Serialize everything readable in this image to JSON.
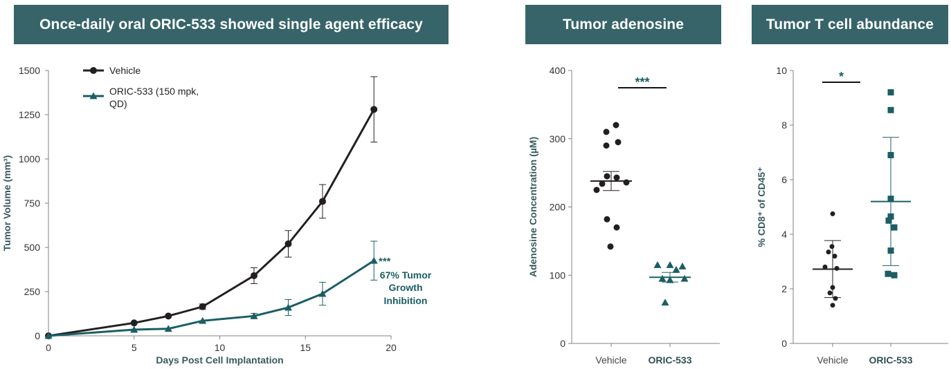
{
  "panels": {
    "growth_title": "Once-daily oral ORIC-533 showed single agent efficacy",
    "adenosine_title": "Tumor adenosine",
    "tcell_title": "Tumor T cell abundance"
  },
  "colors": {
    "banner": "#376468",
    "vehicle": "#231f20",
    "oric": "#1b5e63",
    "axis": "#808080"
  },
  "chart_data": [
    {
      "type": "line",
      "title": "Once-daily oral ORIC-533 showed single agent efficacy",
      "xlabel": "Days Post Cell Implantation",
      "ylabel": "Tumor Volume (mm³)",
      "xlim": [
        0,
        20
      ],
      "ylim": [
        0,
        1500
      ],
      "xticks": [
        "0",
        "5",
        "10",
        "15",
        "20"
      ],
      "yticks": [
        "0",
        "250",
        "500",
        "750",
        "1000",
        "1250",
        "1500"
      ],
      "series": [
        {
          "name": "Vehicle",
          "x": [
            0,
            5,
            7,
            9,
            12,
            14,
            16,
            19
          ],
          "y": [
            0,
            73,
            112,
            165,
            340,
            520,
            760,
            1280
          ],
          "err": [
            0,
            0,
            0,
            15,
            45,
            75,
            95,
            185
          ]
        },
        {
          "name": "ORIC-533 (150 mpk, QD)",
          "x": [
            0,
            5,
            7,
            9,
            12,
            14,
            16,
            19
          ],
          "y": [
            0,
            35,
            40,
            85,
            112,
            160,
            238,
            425
          ],
          "err": [
            0,
            0,
            0,
            0,
            15,
            45,
            65,
            110
          ]
        }
      ],
      "legend": [
        "Vehicle",
        "ORIC-533 (150 mpk,",
        "QD)"
      ],
      "annotations": {
        "stars": "***",
        "line1": "67% Tumor",
        "line2": "Growth",
        "line3": "Inhibition"
      }
    },
    {
      "type": "scatter",
      "title": "Tumor adenosine",
      "ylabel": "Adenosine Concentration (µM)",
      "ylim": [
        0,
        400
      ],
      "yticks": [
        "0",
        "100",
        "200",
        "300",
        "400"
      ],
      "categories": [
        "Vehicle",
        "ORIC-533"
      ],
      "series": [
        {
          "name": "Vehicle",
          "values": [
            320,
            310,
            295,
            290,
            245,
            243,
            236,
            234,
            225,
            182,
            170,
            142
          ],
          "mean": 238,
          "err_low": 224,
          "err_high": 252
        },
        {
          "name": "ORIC-533",
          "values": [
            115,
            115,
            113,
            108,
            95,
            95,
            93,
            60
          ],
          "mean": 97,
          "err_low": 90,
          "err_high": 104
        }
      ],
      "significance": "***"
    },
    {
      "type": "scatter",
      "title": "Tumor T cell abundance",
      "ylabel": "% CD8⁺ of CD45⁺",
      "ylim": [
        0,
        10
      ],
      "yticks": [
        "0",
        "2",
        "4",
        "6",
        "8",
        "10"
      ],
      "categories": [
        "Vehicle",
        "ORIC-533"
      ],
      "series": [
        {
          "name": "Vehicle",
          "values": [
            4.75,
            3.55,
            3.35,
            3.2,
            2.8,
            2.75,
            2.05,
            1.85,
            1.65,
            1.4
          ],
          "mean": 2.72,
          "err_low": 1.68,
          "err_high": 3.77
        },
        {
          "name": "ORIC-533",
          "values": [
            9.2,
            8.55,
            6.9,
            5.3,
            4.65,
            4.5,
            4.25,
            3.4,
            2.55,
            2.5
          ],
          "mean": 5.2,
          "err_low": 2.85,
          "err_high": 7.55
        }
      ],
      "significance": "*"
    }
  ]
}
